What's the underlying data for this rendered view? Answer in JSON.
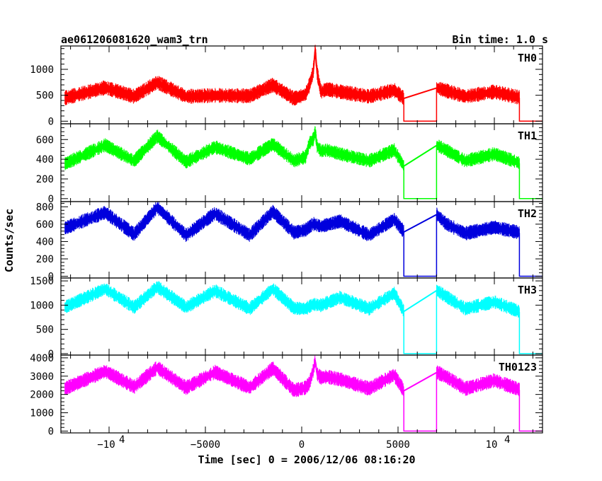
{
  "header": {
    "title": "ae061206081620_wam3_trn",
    "bin_time": "Bin time: 1.0 s"
  },
  "chart_data": {
    "type": "line",
    "title": "ae061206081620_wam3_trn",
    "xlabel": "Time [sec] 0 = 2006/12/06 08:16:20",
    "ylabel": "Counts/sec",
    "xlim": [
      -12500,
      12500
    ],
    "x_ticks": [
      {
        "value": -10000,
        "base": "−10",
        "exp": "4"
      },
      {
        "value": -5000,
        "label": "−5000"
      },
      {
        "value": 0,
        "label": "0"
      },
      {
        "value": 5000,
        "label": "5000"
      },
      {
        "value": 10000,
        "base": "10",
        "exp": "4"
      }
    ],
    "data_gaps": [
      [
        5300,
        7000
      ],
      [
        11300,
        12500
      ]
    ],
    "grid": false,
    "panels": [
      {
        "name": "TH0",
        "color": "#ff0000",
        "ylim": [
          -50,
          1450
        ],
        "yticks": [
          0,
          500,
          1000
        ],
        "x": [
          -12300,
          -10200,
          -8700,
          -7500,
          -6000,
          -4500,
          -2700,
          -1500,
          -400,
          200,
          400,
          600,
          700,
          800,
          1000,
          1300,
          2000,
          3500,
          4800,
          5300,
          7000,
          7500,
          8500,
          10000,
          11300
        ],
        "y": [
          440,
          640,
          470,
          740,
          470,
          490,
          480,
          690,
          430,
          510,
          690,
          950,
          1380,
          930,
          560,
          610,
          560,
          470,
          590,
          440,
          640,
          580,
          470,
          560,
          450
        ]
      },
      {
        "name": "TH1",
        "color": "#00ff00",
        "ylim": [
          -30,
          760
        ],
        "yticks": [
          0,
          200,
          400,
          600
        ],
        "x": [
          -12300,
          -10200,
          -8700,
          -7500,
          -6000,
          -4500,
          -2700,
          -1500,
          -400,
          200,
          400,
          600,
          700,
          800,
          1000,
          1300,
          2000,
          3500,
          4800,
          5300,
          7000,
          7500,
          8500,
          10000,
          11300
        ],
        "y": [
          350,
          540,
          380,
          630,
          370,
          520,
          400,
          550,
          380,
          420,
          560,
          600,
          680,
          530,
          480,
          490,
          450,
          380,
          490,
          330,
          540,
          490,
          380,
          450,
          360
        ]
      },
      {
        "name": "TH2",
        "color": "#0000dd",
        "ylim": [
          -20,
          860
        ],
        "yticks": [
          0,
          200,
          400,
          600,
          800
        ],
        "x": [
          -12300,
          -10200,
          -8700,
          -7500,
          -6000,
          -4500,
          -2700,
          -1500,
          -400,
          200,
          600,
          1000,
          2000,
          3500,
          4800,
          5300,
          7000,
          7500,
          8500,
          10000,
          11300
        ],
        "y": [
          550,
          730,
          480,
          790,
          470,
          720,
          470,
          740,
          500,
          530,
          600,
          570,
          630,
          470,
          650,
          510,
          710,
          600,
          490,
          560,
          500
        ]
      },
      {
        "name": "TH3",
        "color": "#00ffff",
        "ylim": [
          -30,
          1560
        ],
        "yticks": [
          0,
          500,
          1000,
          1500
        ],
        "x": [
          -12300,
          -10200,
          -8700,
          -7500,
          -6000,
          -4500,
          -2700,
          -1500,
          -400,
          200,
          600,
          1000,
          2000,
          3500,
          4800,
          5300,
          7000,
          7500,
          8500,
          10000,
          11300
        ],
        "y": [
          950,
          1330,
          950,
          1370,
          950,
          1290,
          920,
          1330,
          930,
          920,
          1010,
          990,
          1150,
          920,
          1240,
          870,
          1300,
          1170,
          920,
          1060,
          860
        ]
      },
      {
        "name": "TH0123",
        "color": "#ff00ff",
        "ylim": [
          -100,
          4150
        ],
        "yticks": [
          0,
          1000,
          2000,
          3000,
          4000
        ],
        "x": [
          -12300,
          -10200,
          -8700,
          -7500,
          -6000,
          -4500,
          -2700,
          -1500,
          -400,
          200,
          400,
          600,
          700,
          800,
          1000,
          1300,
          2000,
          3500,
          4800,
          5300,
          7000,
          7500,
          8500,
          10000,
          11300
        ],
        "y": [
          2300,
          3250,
          2400,
          3450,
          2350,
          3200,
          2350,
          3400,
          2200,
          2350,
          2600,
          3300,
          3850,
          3100,
          2900,
          2950,
          2800,
          2300,
          3050,
          2200,
          3200,
          2950,
          2300,
          2750,
          2250
        ]
      }
    ]
  }
}
